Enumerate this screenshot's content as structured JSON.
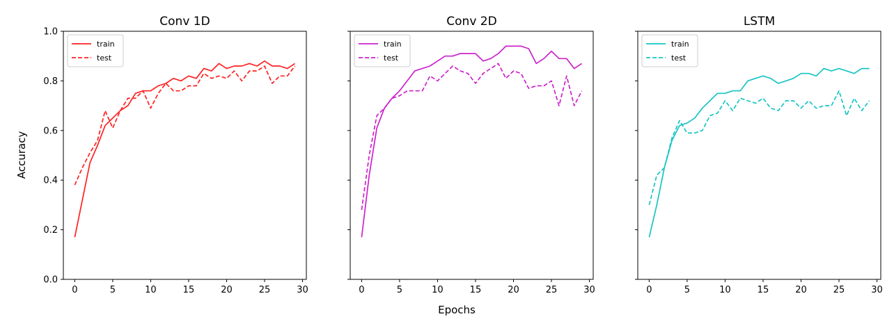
{
  "figure": {
    "xlabel": "Epochs",
    "ylabel": "Accuracy"
  },
  "chart_data": [
    {
      "type": "line",
      "title": "Conv 1D",
      "xlabel": "Epochs",
      "ylabel": "Accuracy",
      "xlim": [
        -1.5,
        30.5
      ],
      "ylim": [
        0.0,
        1.0
      ],
      "xticks": [
        0,
        5,
        10,
        15,
        20,
        25,
        30
      ],
      "yticks": [
        0.0,
        0.2,
        0.4,
        0.6,
        0.8,
        1.0
      ],
      "ytick_labels_visible": true,
      "grid": false,
      "legend": "top-left",
      "color": "#ff2020",
      "x": [
        0,
        1,
        2,
        3,
        4,
        5,
        6,
        7,
        8,
        9,
        10,
        11,
        12,
        13,
        14,
        15,
        16,
        17,
        18,
        19,
        20,
        21,
        22,
        23,
        24,
        25,
        26,
        27,
        28,
        29
      ],
      "series": [
        {
          "name": "train",
          "style": "solid",
          "values": [
            0.17,
            0.32,
            0.47,
            0.54,
            0.62,
            0.65,
            0.68,
            0.7,
            0.75,
            0.76,
            0.76,
            0.78,
            0.79,
            0.81,
            0.8,
            0.82,
            0.81,
            0.85,
            0.84,
            0.87,
            0.85,
            0.86,
            0.86,
            0.87,
            0.86,
            0.88,
            0.86,
            0.86,
            0.85,
            0.87
          ]
        },
        {
          "name": "test",
          "style": "dashed",
          "values": [
            0.38,
            0.45,
            0.51,
            0.56,
            0.68,
            0.61,
            0.68,
            0.73,
            0.73,
            0.76,
            0.69,
            0.75,
            0.79,
            0.76,
            0.76,
            0.78,
            0.78,
            0.83,
            0.81,
            0.82,
            0.81,
            0.84,
            0.8,
            0.84,
            0.84,
            0.86,
            0.79,
            0.82,
            0.82,
            0.86
          ]
        }
      ]
    },
    {
      "type": "line",
      "title": "Conv 2D",
      "xlabel": "Epochs",
      "ylabel": "",
      "xlim": [
        -1.5,
        30.5
      ],
      "ylim": [
        0.0,
        1.0
      ],
      "xticks": [
        0,
        5,
        10,
        15,
        20,
        25,
        30
      ],
      "yticks": [
        0.0,
        0.2,
        0.4,
        0.6,
        0.8,
        1.0
      ],
      "ytick_labels_visible": false,
      "grid": false,
      "legend": "top-left",
      "color": "#cc22cc",
      "x": [
        0,
        1,
        2,
        3,
        4,
        5,
        6,
        7,
        8,
        9,
        10,
        11,
        12,
        13,
        14,
        15,
        16,
        17,
        18,
        19,
        20,
        21,
        22,
        23,
        24,
        25,
        26,
        27,
        28,
        29
      ],
      "series": [
        {
          "name": "train",
          "style": "solid",
          "values": [
            0.17,
            0.42,
            0.61,
            0.69,
            0.73,
            0.76,
            0.8,
            0.84,
            0.85,
            0.86,
            0.88,
            0.9,
            0.9,
            0.91,
            0.91,
            0.91,
            0.88,
            0.89,
            0.91,
            0.94,
            0.94,
            0.94,
            0.93,
            0.87,
            0.89,
            0.92,
            0.89,
            0.89,
            0.85,
            0.87
          ]
        },
        {
          "name": "test",
          "style": "dashed",
          "values": [
            0.28,
            0.5,
            0.66,
            0.69,
            0.73,
            0.74,
            0.76,
            0.76,
            0.76,
            0.82,
            0.8,
            0.83,
            0.86,
            0.84,
            0.83,
            0.79,
            0.83,
            0.85,
            0.87,
            0.81,
            0.84,
            0.83,
            0.77,
            0.78,
            0.78,
            0.8,
            0.7,
            0.82,
            0.7,
            0.76
          ]
        }
      ]
    },
    {
      "type": "line",
      "title": "LSTM",
      "xlabel": "Epochs",
      "ylabel": "",
      "xlim": [
        -1.5,
        30.5
      ],
      "ylim": [
        0.0,
        1.0
      ],
      "xticks": [
        0,
        5,
        10,
        15,
        20,
        25,
        30
      ],
      "yticks": [
        0.0,
        0.2,
        0.4,
        0.6,
        0.8,
        1.0
      ],
      "ytick_labels_visible": false,
      "grid": false,
      "legend": "top-left",
      "color": "#17c4c4",
      "x": [
        0,
        1,
        2,
        3,
        4,
        5,
        6,
        7,
        8,
        9,
        10,
        11,
        12,
        13,
        14,
        15,
        16,
        17,
        18,
        19,
        20,
        21,
        22,
        23,
        24,
        25,
        26,
        27,
        28,
        29
      ],
      "series": [
        {
          "name": "train",
          "style": "solid",
          "values": [
            0.17,
            0.3,
            0.45,
            0.56,
            0.62,
            0.63,
            0.65,
            0.69,
            0.72,
            0.75,
            0.75,
            0.76,
            0.76,
            0.8,
            0.81,
            0.82,
            0.81,
            0.79,
            0.8,
            0.81,
            0.83,
            0.83,
            0.82,
            0.85,
            0.84,
            0.85,
            0.84,
            0.83,
            0.85,
            0.85
          ]
        },
        {
          "name": "test",
          "style": "dashed",
          "values": [
            0.3,
            0.42,
            0.45,
            0.57,
            0.64,
            0.59,
            0.59,
            0.6,
            0.66,
            0.67,
            0.72,
            0.68,
            0.73,
            0.72,
            0.71,
            0.73,
            0.69,
            0.68,
            0.72,
            0.72,
            0.69,
            0.72,
            0.69,
            0.7,
            0.7,
            0.76,
            0.66,
            0.73,
            0.68,
            0.72
          ]
        }
      ]
    }
  ]
}
